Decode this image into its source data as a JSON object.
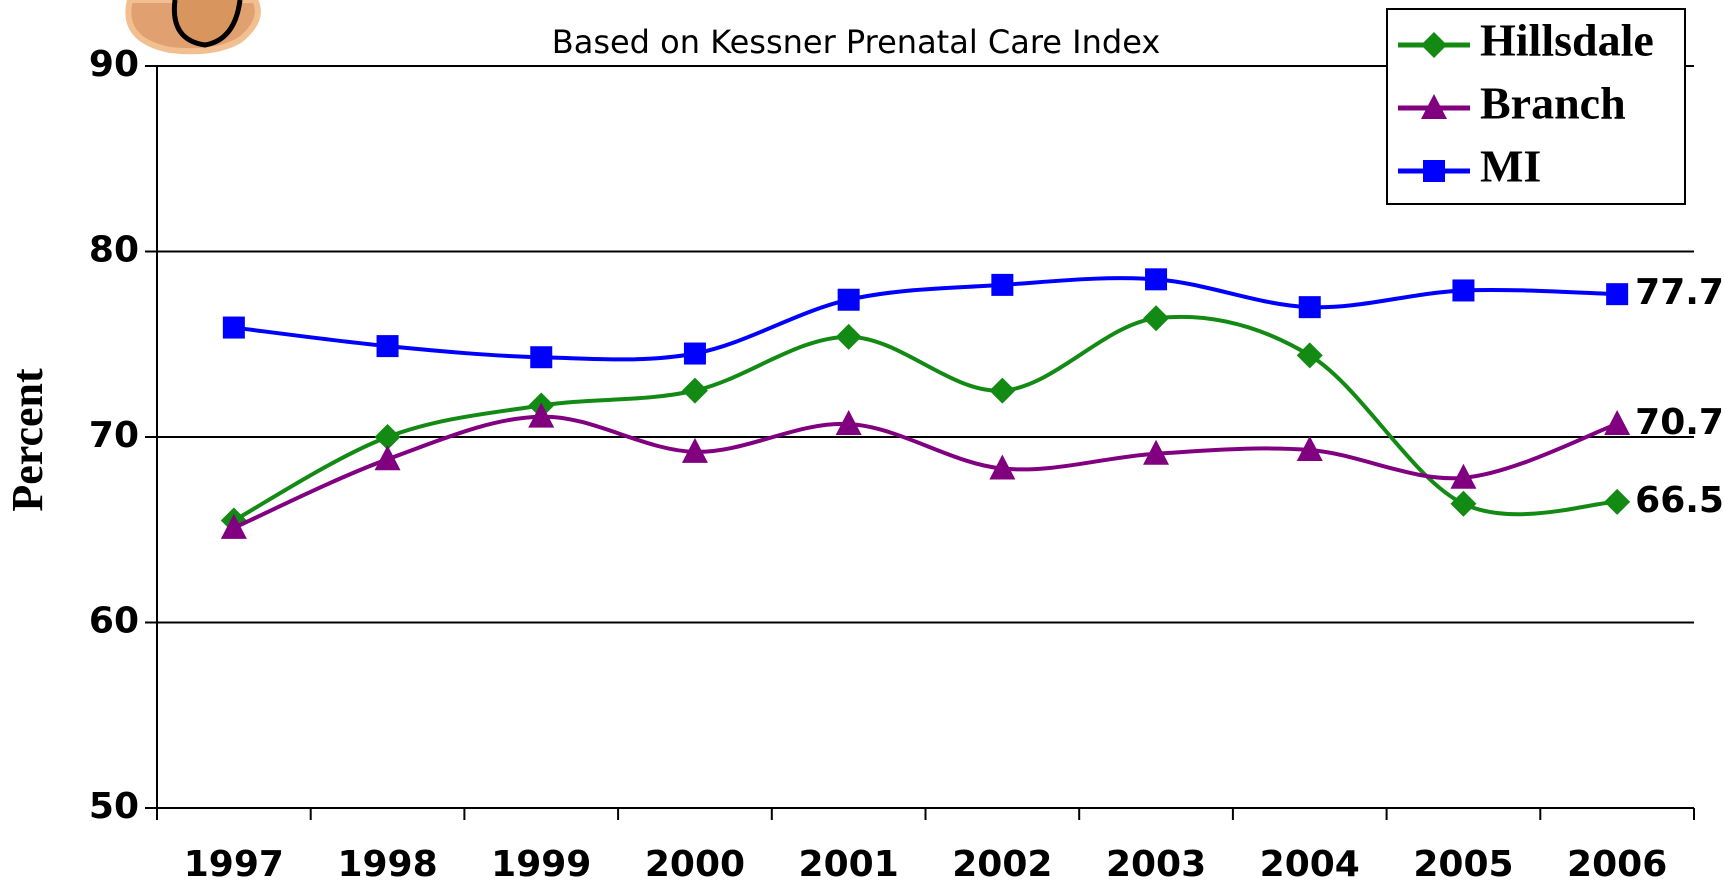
{
  "chart_data": {
    "type": "line",
    "subtitle": "Based on Kessner Prenatal Care Index",
    "y_label": "Percent",
    "categories": [
      "1997",
      "1998",
      "1999",
      "2000",
      "2001",
      "2002",
      "2003",
      "2004",
      "2005",
      "2006"
    ],
    "series": [
      {
        "name": "Hillsdale",
        "color": "#138a13",
        "marker": "diamond",
        "values": [
          65.5,
          70,
          71.7,
          72.5,
          75.4,
          72.5,
          76.4,
          74.4,
          66.4,
          66.5
        ]
      },
      {
        "name": "Branch",
        "color": "#800080",
        "marker": "triangle",
        "values": [
          65.1,
          68.8,
          71.1,
          69.2,
          70.7,
          68.3,
          69.1,
          69.3,
          67.8,
          70.7
        ]
      },
      {
        "name": "MI",
        "color": "#0000ff",
        "marker": "square",
        "values": [
          75.9,
          74.9,
          74.3,
          74.5,
          77.4,
          78.2,
          78.5,
          77.0,
          77.9,
          77.7
        ]
      }
    ],
    "ylim": [
      50,
      90
    ],
    "yticks": [
      50,
      60,
      70,
      80,
      90
    ],
    "grid": true,
    "legend": "top-right"
  }
}
